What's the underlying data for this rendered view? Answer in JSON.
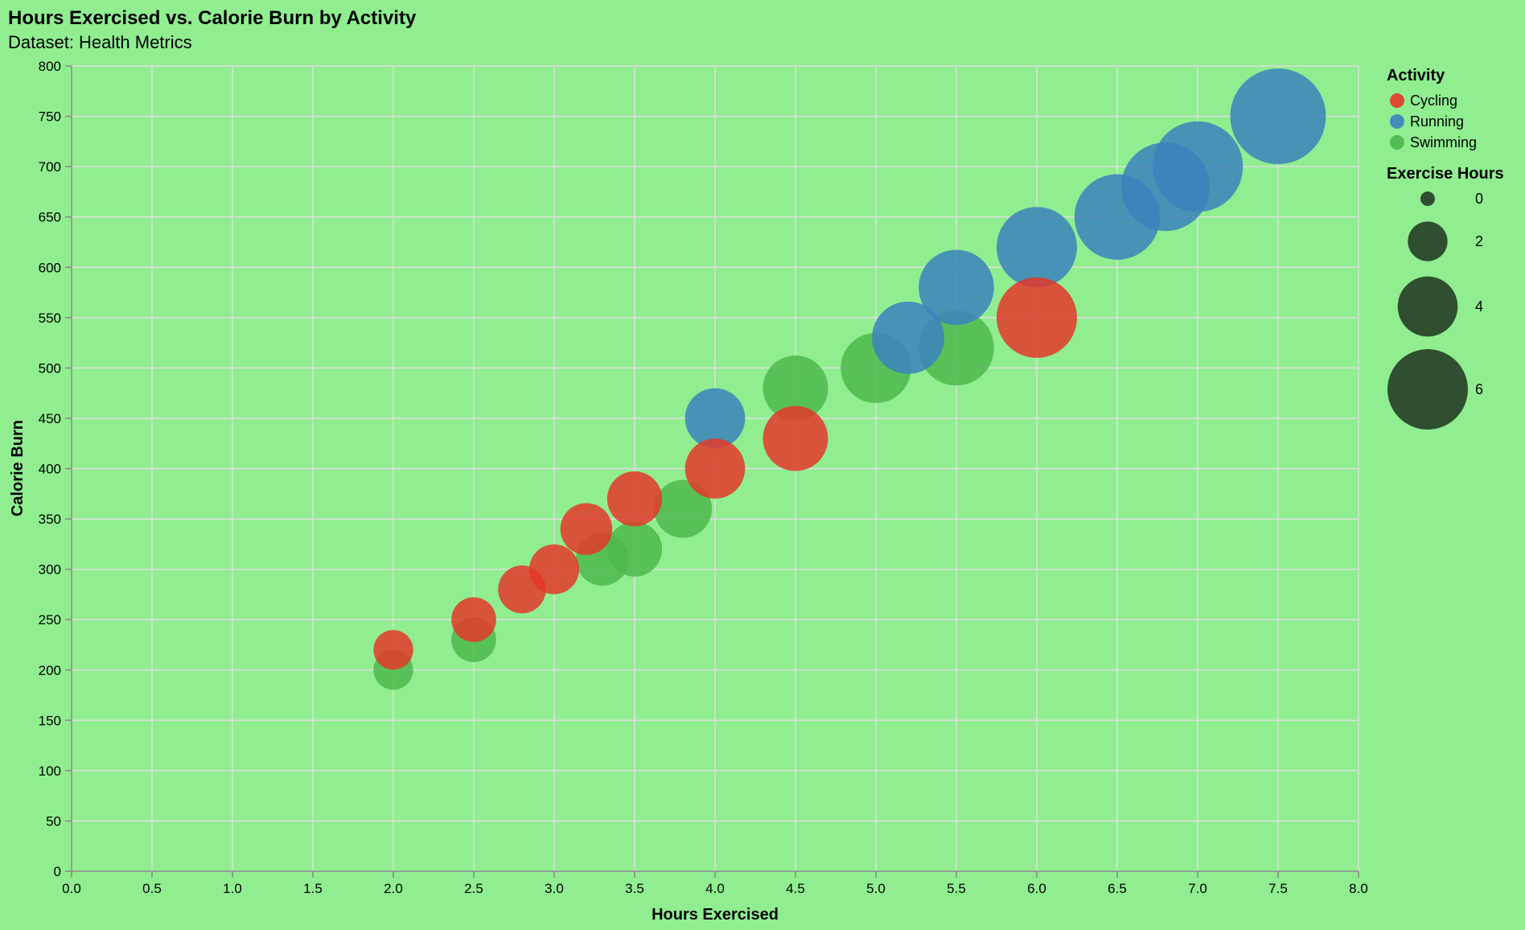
{
  "chart_data": {
    "type": "scatter",
    "title": "Hours Exercised vs. Calorie Burn by Activity",
    "subtitle": "Dataset: Health Metrics",
    "xlabel": "Hours Exercised",
    "ylabel": "Calorie Burn",
    "xlim": [
      0,
      8
    ],
    "ylim": [
      0,
      800
    ],
    "x_ticks": [
      "0.0",
      "0.5",
      "1.0",
      "1.5",
      "2.0",
      "2.5",
      "3.0",
      "3.5",
      "4.0",
      "4.5",
      "5.0",
      "5.5",
      "6.0",
      "6.5",
      "7.0",
      "7.5",
      "8.0"
    ],
    "y_ticks": [
      "0",
      "50",
      "100",
      "150",
      "200",
      "250",
      "300",
      "350",
      "400",
      "450",
      "500",
      "550",
      "600",
      "650",
      "700",
      "750",
      "800"
    ],
    "grid": true,
    "legend_placement": "right",
    "color_legend": {
      "title": "Activity",
      "entries": [
        {
          "label": "Cycling",
          "color": "#e4372a"
        },
        {
          "label": "Running",
          "color": "#3b83bd"
        },
        {
          "label": "Swimming",
          "color": "#4db84d"
        }
      ]
    },
    "size_legend": {
      "title": "Exercise Hours",
      "entries": [
        {
          "label": "0",
          "value": 0
        },
        {
          "label": "2",
          "value": 2
        },
        {
          "label": "4",
          "value": 4
        },
        {
          "label": "6",
          "value": 6
        }
      ]
    },
    "series": [
      {
        "name": "Swimming",
        "color": "#4db84d",
        "points": [
          {
            "x": 2.0,
            "y": 200,
            "size": 2.0
          },
          {
            "x": 2.5,
            "y": 230,
            "size": 2.5
          },
          {
            "x": 3.3,
            "y": 310,
            "size": 3.3
          },
          {
            "x": 3.5,
            "y": 320,
            "size": 3.5
          },
          {
            "x": 3.8,
            "y": 360,
            "size": 3.8
          },
          {
            "x": 4.5,
            "y": 480,
            "size": 4.5
          },
          {
            "x": 5.0,
            "y": 500,
            "size": 5.0
          },
          {
            "x": 5.5,
            "y": 520,
            "size": 5.5
          }
        ]
      },
      {
        "name": "Running",
        "color": "#3b83bd",
        "points": [
          {
            "x": 4.0,
            "y": 450,
            "size": 4.0
          },
          {
            "x": 5.2,
            "y": 530,
            "size": 5.2
          },
          {
            "x": 5.5,
            "y": 580,
            "size": 5.5
          },
          {
            "x": 6.0,
            "y": 620,
            "size": 6.0
          },
          {
            "x": 6.5,
            "y": 650,
            "size": 6.5
          },
          {
            "x": 6.8,
            "y": 680,
            "size": 6.8
          },
          {
            "x": 7.0,
            "y": 700,
            "size": 7.0
          },
          {
            "x": 7.5,
            "y": 750,
            "size": 7.5
          }
        ]
      },
      {
        "name": "Cycling",
        "color": "#e4372a",
        "points": [
          {
            "x": 2.0,
            "y": 220,
            "size": 2.0
          },
          {
            "x": 2.5,
            "y": 250,
            "size": 2.5
          },
          {
            "x": 2.8,
            "y": 280,
            "size": 2.8
          },
          {
            "x": 3.0,
            "y": 300,
            "size": 3.0
          },
          {
            "x": 3.2,
            "y": 340,
            "size": 3.2
          },
          {
            "x": 3.5,
            "y": 370,
            "size": 3.5
          },
          {
            "x": 4.0,
            "y": 400,
            "size": 4.0
          },
          {
            "x": 4.5,
            "y": 430,
            "size": 4.5
          },
          {
            "x": 6.0,
            "y": 550,
            "size": 6.0
          }
        ]
      }
    ]
  }
}
